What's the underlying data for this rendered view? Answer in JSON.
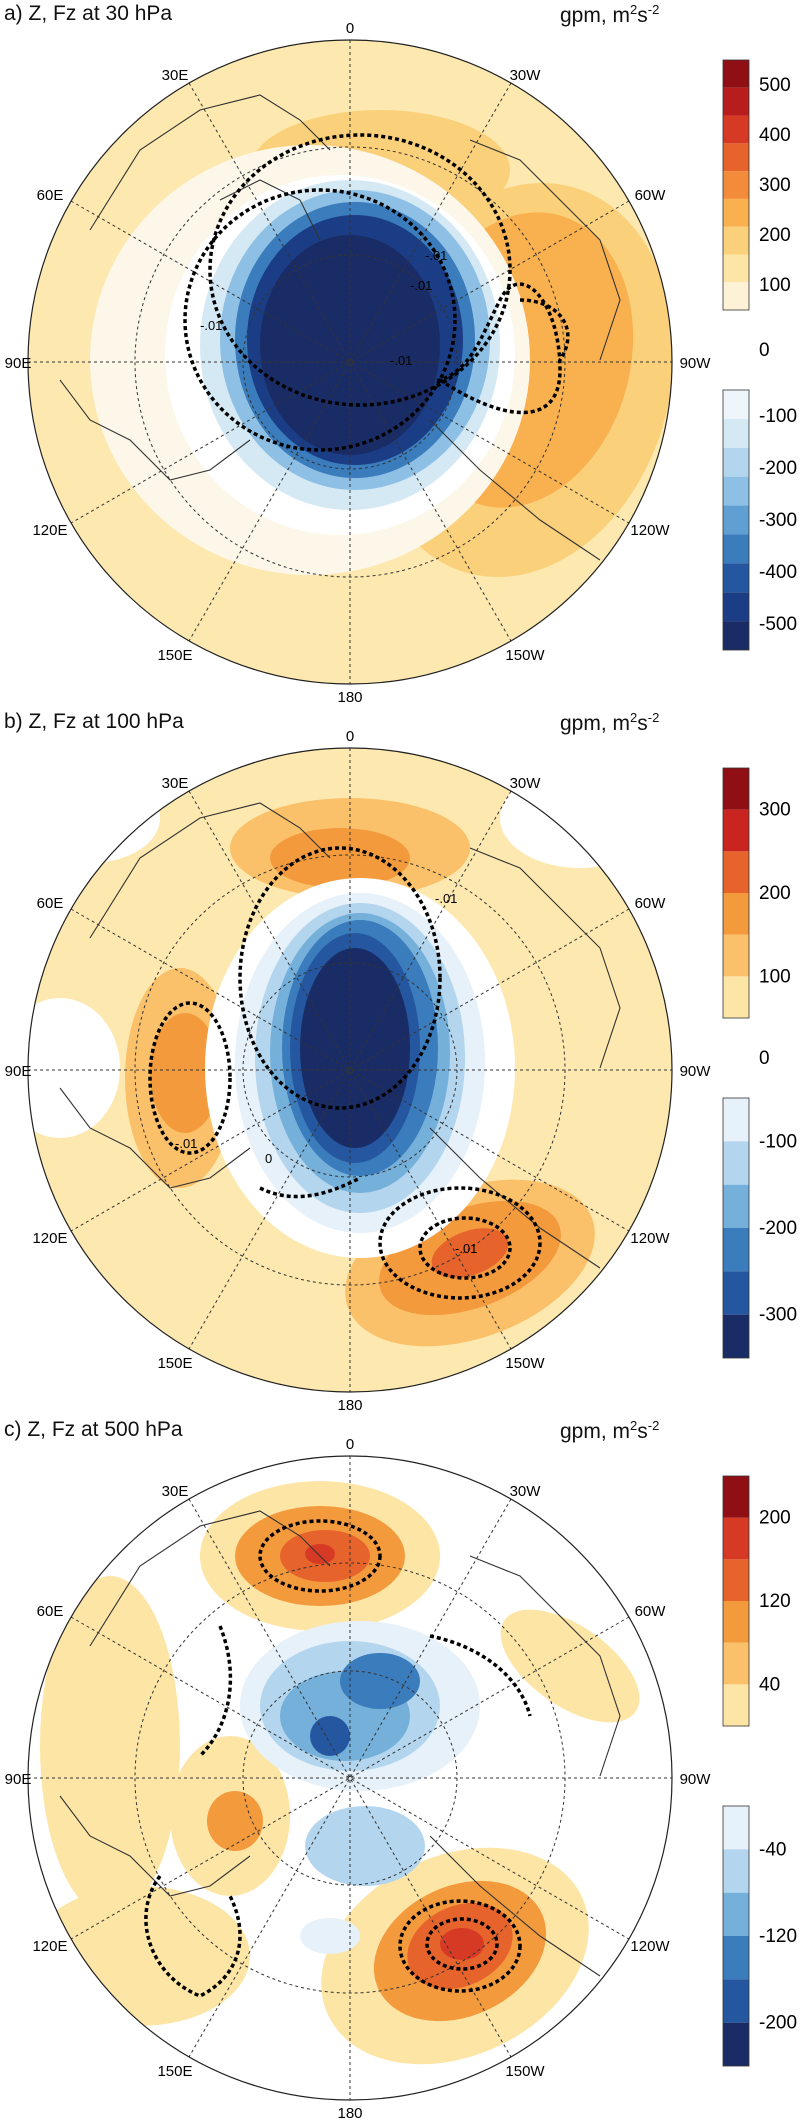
{
  "panels": [
    {
      "title": "a) Z, Fz at 30 hPa",
      "units_base": "gpm, m",
      "units_sup1": "2",
      "units_mid": "s",
      "units_sup2": "-2",
      "lon_labels": {
        "top": "0",
        "top_right": "30W",
        "right_upper": "60W",
        "right": "90W",
        "right_lower": "120W",
        "bottom_right": "150W",
        "bottom": "180",
        "bottom_left": "150E",
        "left_lower": "120E",
        "left": "90E",
        "left_upper": "60E",
        "top_left": "30E"
      },
      "contour_labels": [
        "-.01",
        "-.01",
        "-.01",
        "-.01"
      ],
      "colorbar": {
        "positive_ticks": [
          "500",
          "400",
          "300",
          "200",
          "100"
        ],
        "zero": "0",
        "negative_ticks": [
          "-100",
          "-200",
          "-300",
          "-400",
          "-500"
        ],
        "positive_colors": [
          "#fdf2d6",
          "#fde5a6",
          "#fbd07a",
          "#f9b04f",
          "#f28c3a",
          "#e6632c",
          "#d63a25",
          "#b81d1d",
          "#8f0f14"
        ],
        "negative_colors": [
          "#eef6fb",
          "#d5e9f5",
          "#b3d6ee",
          "#8dc0e4",
          "#5f9fd2",
          "#3a7cbc",
          "#2557a0",
          "#1b3d85",
          "#1a2c66"
        ]
      }
    },
    {
      "title": "b) Z, Fz at 100 hPa",
      "units_base": "gpm, m",
      "units_sup1": "2",
      "units_mid": "s",
      "units_sup2": "-2",
      "lon_labels": {
        "top": "0",
        "top_right": "30W",
        "right_upper": "60W",
        "right": "90W",
        "right_lower": "120W",
        "bottom_right": "150W",
        "bottom": "180",
        "bottom_left": "150E",
        "left_lower": "120E",
        "left": "90E",
        "left_upper": "60E",
        "top_left": "30E"
      },
      "contour_labels": [
        "-.01",
        "-.01",
        "-.01",
        "0"
      ],
      "colorbar": {
        "positive_ticks": [
          "300",
          "200",
          "100"
        ],
        "zero": "0",
        "negative_ticks": [
          "-100",
          "-200",
          "-300"
        ],
        "positive_colors": [
          "#fde5a6",
          "#fbc16a",
          "#f39a3d",
          "#e6632c",
          "#c9241f",
          "#8f0f14"
        ],
        "negative_colors": [
          "#e6f1f9",
          "#b3d6ee",
          "#75b0db",
          "#3a7cbc",
          "#2557a0",
          "#1a2c66"
        ]
      }
    },
    {
      "title": "c) Z, Fz at 500 hPa",
      "units_base": "gpm, m",
      "units_sup1": "2",
      "units_mid": "s",
      "units_sup2": "-2",
      "lon_labels": {
        "top": "0",
        "top_right": "30W",
        "right_upper": "60W",
        "right": "90W",
        "right_lower": "120W",
        "bottom_right": "150W",
        "bottom": "180",
        "bottom_left": "150E",
        "left_lower": "120E",
        "left": "90E",
        "left_upper": "60E",
        "top_left": "30E"
      },
      "contour_labels": [],
      "colorbar": {
        "positive_ticks": [
          "200",
          "120",
          "40"
        ],
        "zero": "",
        "negative_ticks": [
          "-40",
          "-120",
          "-200"
        ],
        "positive_colors": [
          "#fde5a6",
          "#fbc16a",
          "#f39a3d",
          "#e6632c",
          "#d63a25",
          "#8f0f14"
        ],
        "negative_colors": [
          "#e6f1f9",
          "#b3d6ee",
          "#75b0db",
          "#3a7cbc",
          "#2557a0",
          "#1a2c66"
        ]
      }
    }
  ]
}
